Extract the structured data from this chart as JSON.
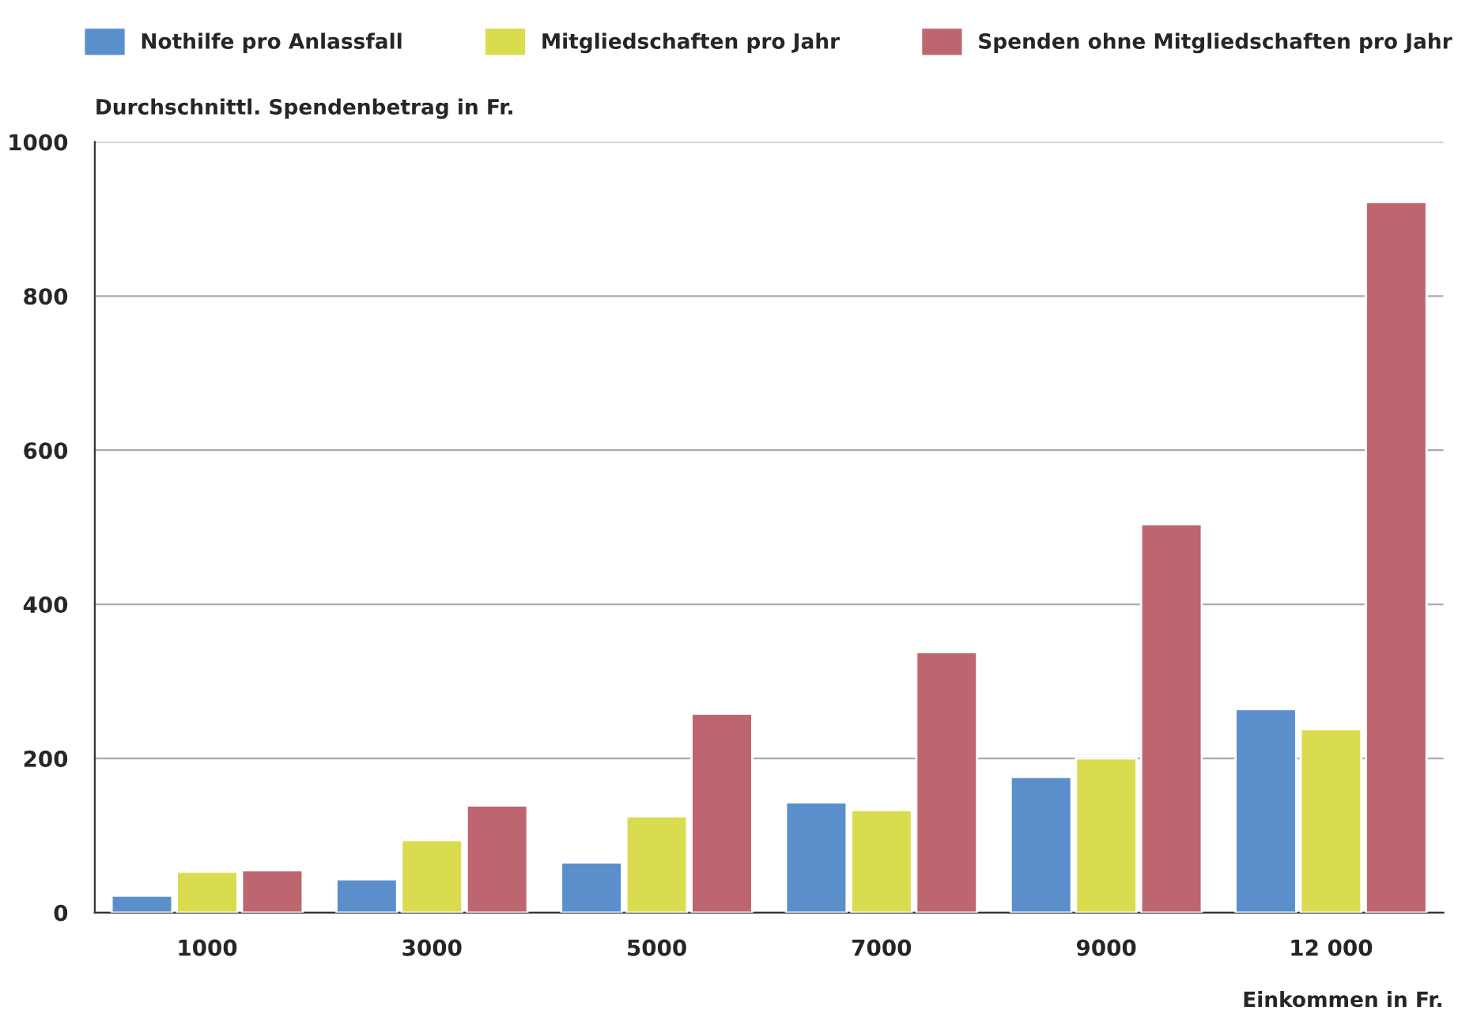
{
  "chart_data": {
    "type": "bar",
    "categories": [
      "1000",
      "3000",
      "5000",
      "7000",
      "9000",
      "12 000"
    ],
    "series": [
      {
        "name": "Nothilfe pro Anlassfall",
        "color": "#5b8fcc",
        "values": [
          22,
          43,
          65,
          143,
          176,
          264
        ]
      },
      {
        "name": "Mitgliedschaften pro Jahr",
        "color": "#d9dc4f",
        "values": [
          53,
          94,
          125,
          133,
          200,
          238
        ]
      },
      {
        "name": "Spenden ohne Mitgliedschaften pro Jahr",
        "color": "#be6670",
        "values": [
          55,
          139,
          258,
          338,
          504,
          922
        ]
      }
    ],
    "ylabel": "Durchschnittl. Spendenbetrag in Fr.",
    "xlabel": "Einkommen in Fr.",
    "ylim": [
      0,
      1000
    ],
    "yticks": [
      0,
      200,
      400,
      600,
      800,
      1000
    ],
    "grid": "y",
    "legend": "top"
  }
}
